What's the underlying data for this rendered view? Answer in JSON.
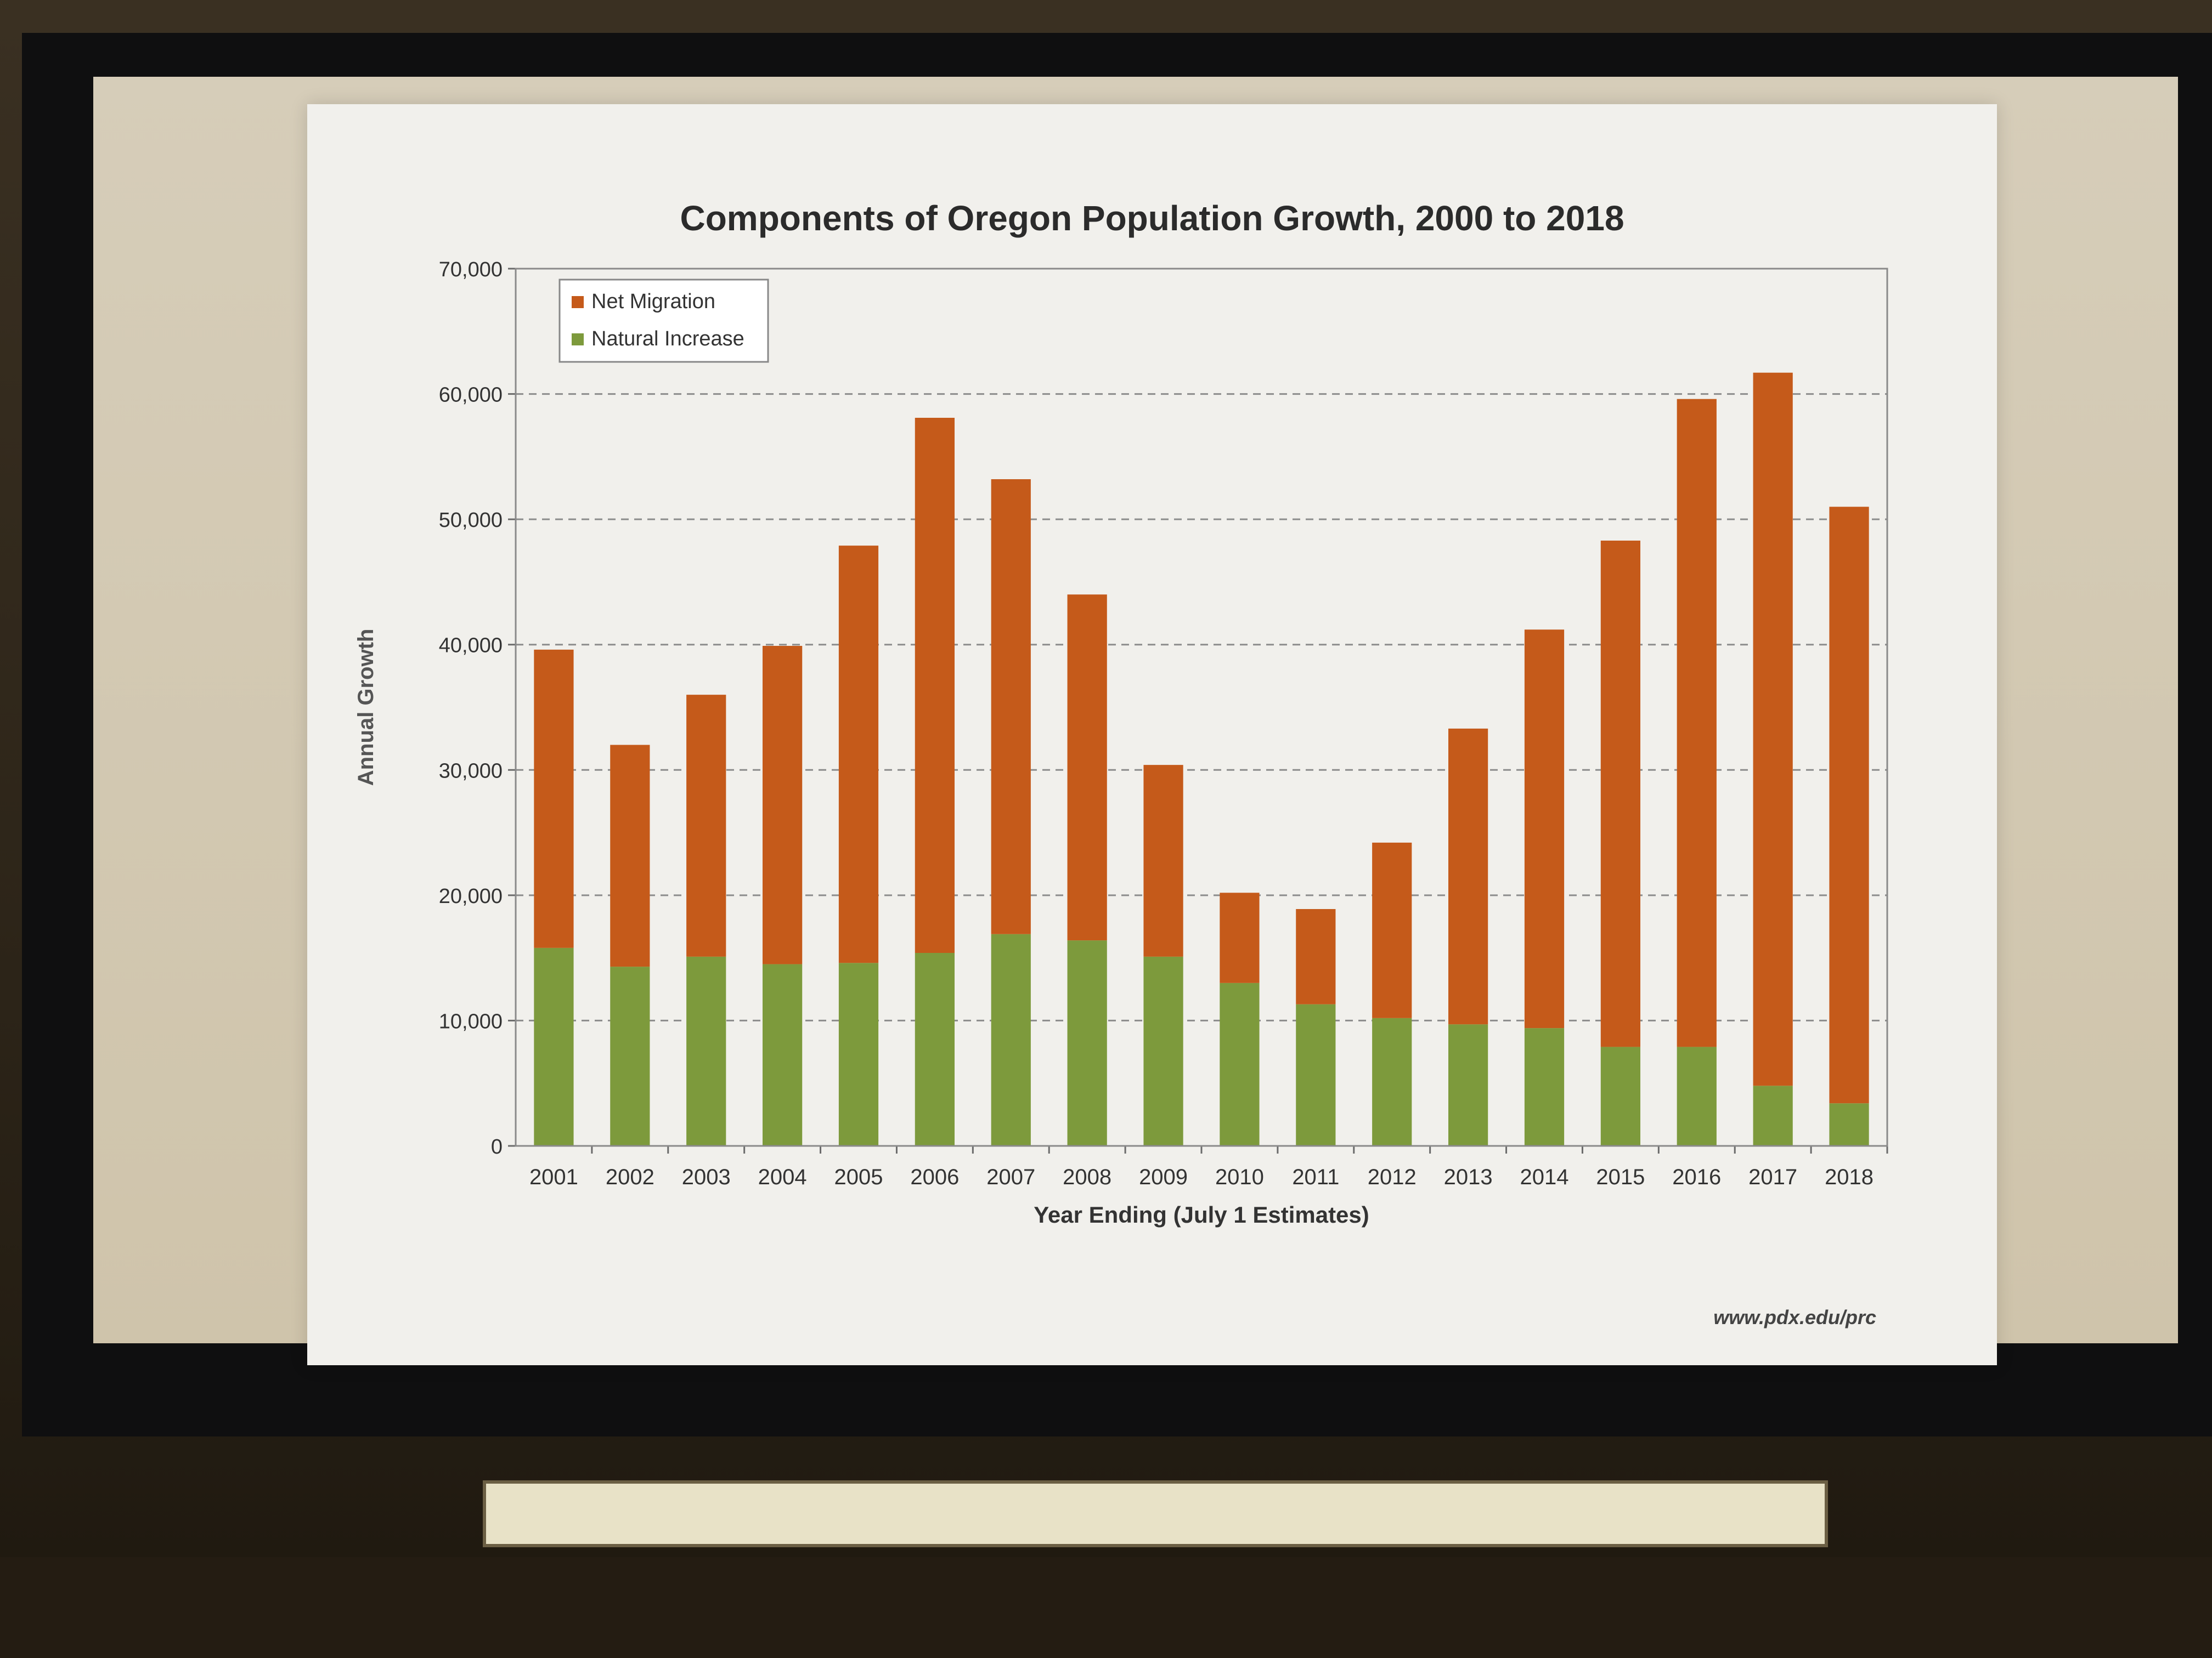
{
  "chart_data": {
    "type": "bar",
    "stacked": true,
    "title": "Components of Oregon Population Growth, 2000 to 2018",
    "xlabel": "Year Ending (July 1 Estimates)",
    "ylabel": "Annual Growth",
    "ylim": [
      0,
      70000
    ],
    "yticks": [
      0,
      10000,
      20000,
      30000,
      40000,
      50000,
      60000,
      70000
    ],
    "ytick_labels": [
      "0",
      "10,000",
      "20,000",
      "30,000",
      "40,000",
      "50,000",
      "60,000",
      "70,000"
    ],
    "grid": "dashed horizontal",
    "legend_position": "top-left",
    "categories": [
      "2001",
      "2002",
      "2003",
      "2004",
      "2005",
      "2006",
      "2007",
      "2008",
      "2009",
      "2010",
      "2011",
      "2012",
      "2013",
      "2014",
      "2015",
      "2016",
      "2017",
      "2018"
    ],
    "series": [
      {
        "name": "Natural Increase",
        "color": "#7d9a3c",
        "values": [
          15800,
          14300,
          15100,
          14500,
          14600,
          15400,
          16900,
          16400,
          15100,
          13000,
          11300,
          10200,
          9700,
          9400,
          7900,
          7900,
          4800,
          3400
        ]
      },
      {
        "name": "Net Migration",
        "color": "#c55a1a",
        "values": [
          23800,
          17700,
          20900,
          25400,
          33300,
          42700,
          36300,
          27600,
          15300,
          7200,
          7600,
          14000,
          23600,
          31800,
          40400,
          51700,
          56900,
          47600
        ]
      }
    ],
    "source_note": "www.pdx.edu/prc"
  }
}
